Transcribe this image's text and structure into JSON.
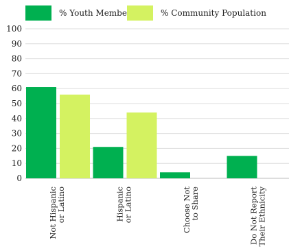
{
  "chart_data": {
    "type": "bar",
    "categories": [
      [
        "Not Hispanic",
        "or Latino"
      ],
      [
        "Hispanic",
        "or Latino"
      ],
      [
        "Choose Not",
        "to Share"
      ],
      [
        "Do Not Report",
        "Their Ethnicity"
      ]
    ],
    "series": [
      {
        "name": "% Youth Members",
        "color": "#00b050",
        "values": [
          61,
          21,
          4,
          15
        ]
      },
      {
        "name": "% Community Population",
        "color": "#d4f261",
        "values": [
          56,
          44,
          0,
          0
        ]
      }
    ],
    "ylim": [
      0,
      100
    ],
    "yticks": [
      0,
      10,
      20,
      30,
      40,
      50,
      60,
      70,
      80,
      90,
      100
    ],
    "grid": true,
    "legend_position": "top-left",
    "title": "",
    "xlabel": "",
    "ylabel": ""
  }
}
